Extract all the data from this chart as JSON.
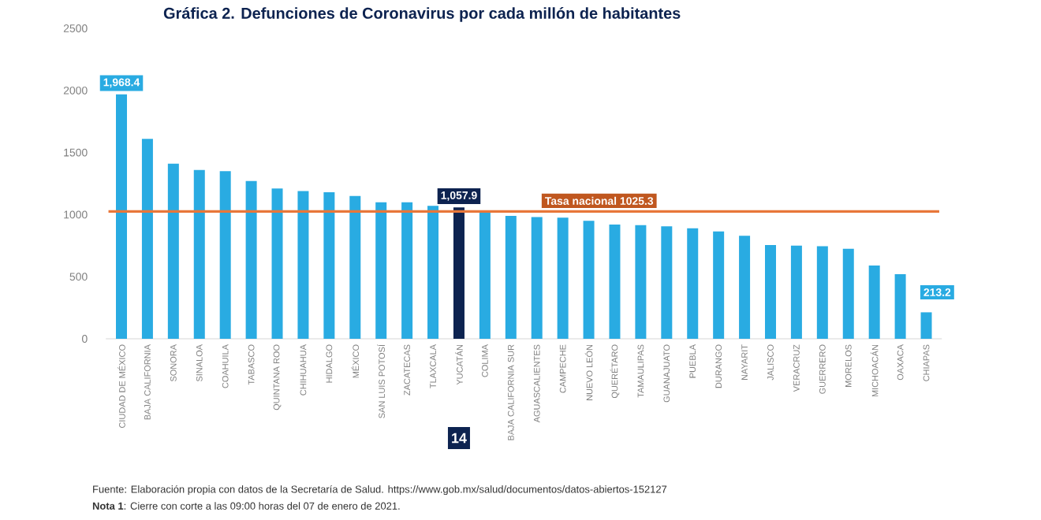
{
  "chart_data": {
    "type": "bar",
    "title": "Gráfica 2. Defunciones de Coronavirus por cada millón de habitantes",
    "categories": [
      "CIUDAD DE MÉXICO",
      "BAJA CALIFORNIA",
      "SONORA",
      "SINALOA",
      "COAHUILA",
      "TABASCO",
      "QUINTANA ROO",
      "CHIHUAHUA",
      "HIDALGO",
      "MÉXICO",
      "SAN LUIS POTOSÍ",
      "ZACATECAS",
      "TLAXCALA",
      "YUCATÁN",
      "COLIMA",
      "BAJA CALIFORNIA SUR",
      "AGUASCALIENTES",
      "CAMPECHE",
      "NUEVO LEÓN",
      "QUERÉTARO",
      "TAMAULIPAS",
      "GUANAJUATO",
      "PUEBLA",
      "DURANGO",
      "NAYARIT",
      "JALISCO",
      "VERACRUZ",
      "GUERRERO",
      "MORELOS",
      "MICHOACÁN",
      "OAXACA",
      "CHIAPAS"
    ],
    "values": [
      1968.4,
      1610,
      1410,
      1360,
      1350,
      1270,
      1210,
      1190,
      1180,
      1150,
      1100,
      1100,
      1070,
      1057.9,
      1020,
      990,
      980,
      975,
      950,
      920,
      915,
      905,
      890,
      865,
      830,
      755,
      750,
      745,
      725,
      590,
      520,
      213.2
    ],
    "value_labels": [
      "1,968.4",
      null,
      null,
      null,
      null,
      null,
      null,
      null,
      null,
      null,
      null,
      null,
      null,
      "1,057.9",
      null,
      null,
      null,
      null,
      null,
      null,
      null,
      null,
      null,
      null,
      null,
      null,
      null,
      null,
      null,
      null,
      null,
      "213.2"
    ],
    "colors": [
      "#29abe2",
      "#29abe2",
      "#29abe2",
      "#29abe2",
      "#29abe2",
      "#29abe2",
      "#29abe2",
      "#29abe2",
      "#29abe2",
      "#29abe2",
      "#29abe2",
      "#29abe2",
      "#29abe2",
      "#0d2350",
      "#29abe2",
      "#29abe2",
      "#29abe2",
      "#29abe2",
      "#29abe2",
      "#29abe2",
      "#29abe2",
      "#29abe2",
      "#29abe2",
      "#29abe2",
      "#29abe2",
      "#29abe2",
      "#29abe2",
      "#29abe2",
      "#29abe2",
      "#29abe2",
      "#29abe2",
      "#29abe2"
    ],
    "ylim": [
      0,
      2500
    ],
    "yticks": [
      0,
      500,
      1000,
      1500,
      2000,
      2500
    ],
    "grid": false,
    "ref_lines": [
      {
        "axis": "y",
        "value": 1025.3,
        "label": "Tasa nacional 1025.3",
        "color": "#e8773a"
      }
    ],
    "annotations": [
      "14",
      "Fuente: Elaboración propia con datos de la Secretaría de Salud. https://www.gob.mx/salud/documentos/datos-abiertos-152127",
      "**Nota 1**: Cierre con corte a las 09:00 horas del 07 de enero de 2021."
    ]
  }
}
